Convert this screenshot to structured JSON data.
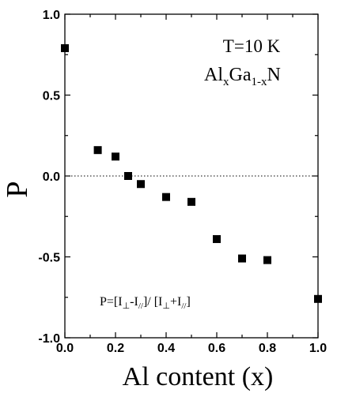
{
  "chart_data": {
    "type": "scatter",
    "xlabel": "Al content (x)",
    "ylabel": "P",
    "xlim": [
      0.0,
      1.0
    ],
    "ylim": [
      -1.0,
      1.0
    ],
    "x_ticks": [
      "0.0",
      "0.2",
      "0.4",
      "0.6",
      "0.8",
      "1.0"
    ],
    "y_ticks": [
      "1.0",
      "0.5",
      "0.0",
      "-0.5",
      "-1.0"
    ],
    "reference_line": {
      "y": 0.0,
      "style": "dotted"
    },
    "annotations": {
      "temperature": "T=10 K",
      "formula": {
        "base1": "Al",
        "sub1": "x",
        "base2": "Ga",
        "sub2": "1-x",
        "base3": "N"
      },
      "definition": {
        "p1": "P=[I",
        "s1": "⊥",
        "p2": "-I",
        "s2": "//",
        "p3": "]/ [I",
        "s3": "⊥",
        "p4": "+I",
        "s4": "//",
        "p5": "]"
      }
    },
    "series": [
      {
        "x": [
          0.0,
          0.13,
          0.2,
          0.25,
          0.3,
          0.4,
          0.5,
          0.6,
          0.7,
          0.8,
          1.0
        ],
        "y": [
          0.79,
          0.16,
          0.12,
          0.0,
          -0.05,
          -0.13,
          -0.16,
          -0.39,
          -0.51,
          -0.52,
          -0.76
        ],
        "marker": "square",
        "color": "#000000"
      }
    ]
  }
}
